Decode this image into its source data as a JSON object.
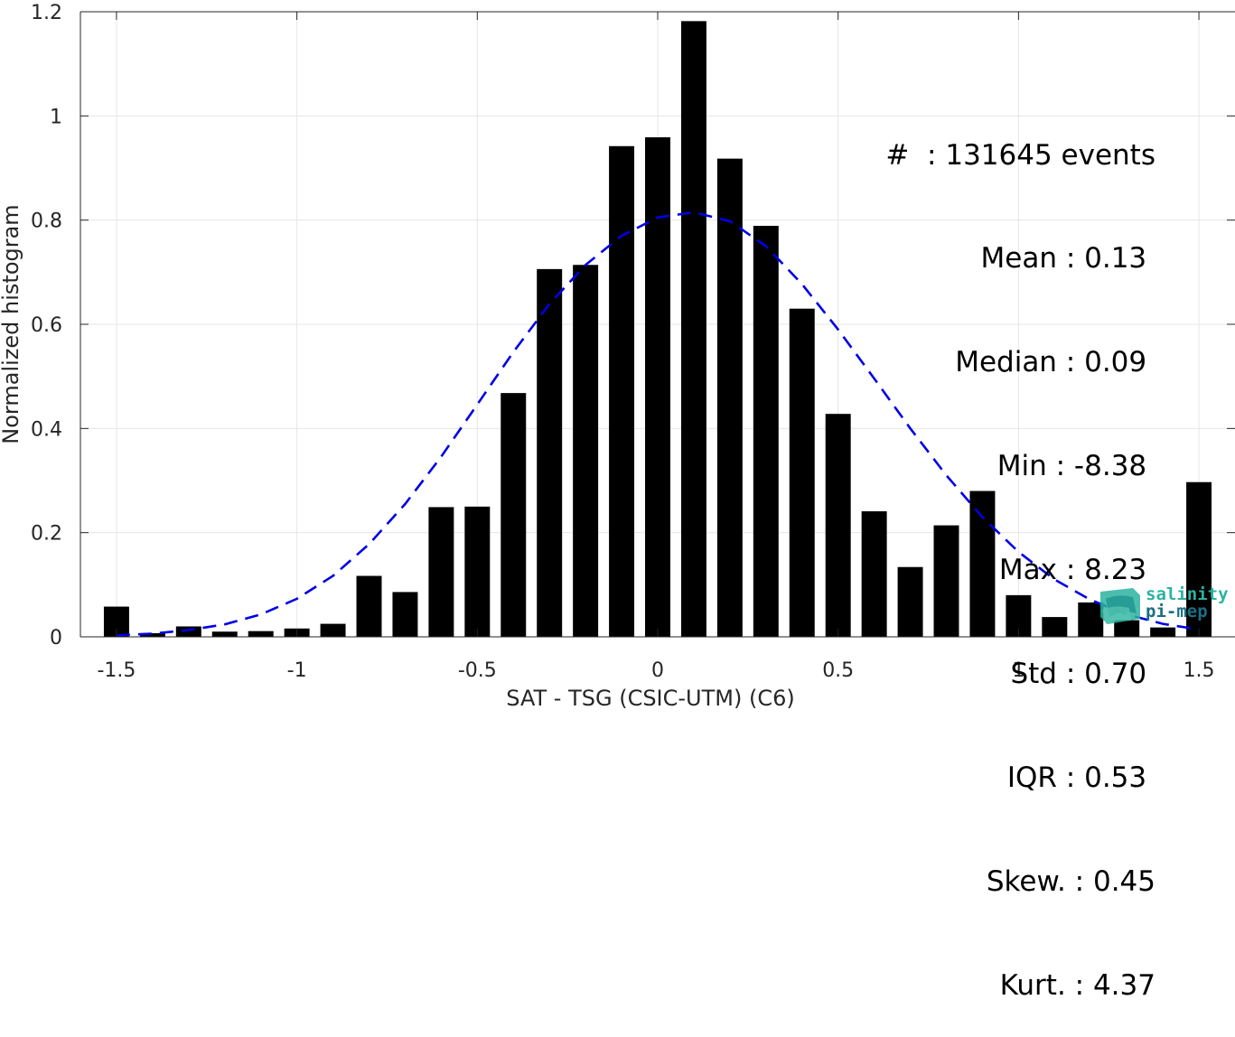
{
  "chart_data": {
    "type": "bar",
    "xlabel": "SAT - TSG (CSIC-UTM) (C6)",
    "ylabel": "Normalized histogram",
    "xlim": [
      -1.6,
      1.6
    ],
    "ylim": [
      0,
      1.2
    ],
    "xticks": [
      "-1.5",
      "-1",
      "-0.5",
      "0",
      "0.5",
      "1",
      "1.5"
    ],
    "xtick_values": [
      -1.5,
      -1,
      -0.5,
      0,
      0.5,
      1,
      1.5
    ],
    "yticks": [
      "0",
      "0.2",
      "0.4",
      "0.6",
      "0.8",
      "1",
      "1.2"
    ],
    "ytick_values": [
      0,
      0.2,
      0.4,
      0.6,
      0.8,
      1.0,
      1.2
    ],
    "grid": true,
    "bars": {
      "x": [
        -1.5,
        -1.4,
        -1.3,
        -1.2,
        -1.1,
        -1.0,
        -0.9,
        -0.8,
        -0.7,
        -0.6,
        -0.5,
        -0.4,
        -0.3,
        -0.2,
        -0.1,
        0.0,
        0.1,
        0.2,
        0.3,
        0.4,
        0.5,
        0.6,
        0.7,
        0.8,
        0.9,
        1.0,
        1.1,
        1.2,
        1.3,
        1.4,
        1.5
      ],
      "values": [
        0.058,
        0.007,
        0.02,
        0.01,
        0.011,
        0.016,
        0.025,
        0.117,
        0.086,
        0.249,
        0.25,
        0.468,
        0.706,
        0.714,
        0.942,
        0.959,
        1.182,
        0.918,
        0.789,
        0.63,
        0.428,
        0.241,
        0.134,
        0.214,
        0.28,
        0.08,
        0.038,
        0.066,
        0.032,
        0.018,
        0.297
      ],
      "color": "#000000"
    },
    "fit_curve": {
      "style": "dashed",
      "color": "#0000e6",
      "x": [
        -1.5,
        -1.4,
        -1.3,
        -1.2,
        -1.1,
        -1.0,
        -0.9,
        -0.8,
        -0.7,
        -0.6,
        -0.5,
        -0.4,
        -0.3,
        -0.2,
        -0.1,
        0.0,
        0.1,
        0.2,
        0.3,
        0.4,
        0.5,
        0.6,
        0.7,
        0.8,
        0.9,
        1.0,
        1.1,
        1.2,
        1.3,
        1.4,
        1.5
      ],
      "values": [
        0.003,
        0.006,
        0.013,
        0.024,
        0.043,
        0.073,
        0.117,
        0.178,
        0.255,
        0.346,
        0.446,
        0.547,
        0.639,
        0.714,
        0.77,
        0.805,
        0.815,
        0.798,
        0.75,
        0.677,
        0.59,
        0.496,
        0.4,
        0.31,
        0.23,
        0.163,
        0.11,
        0.071,
        0.043,
        0.025,
        0.014
      ]
    }
  },
  "stats": [
    "#  : 131645 events",
    "Mean : 0.13 ",
    "Median : 0.09 ",
    "Min : -8.38 ",
    "Max : 8.23 ",
    "Std : 0.70 ",
    "IQR : 0.53 ",
    "Skew. : 0.45",
    "Kurt. : 4.37"
  ],
  "logo": {
    "line1": "salinity",
    "line2": "pi-mep"
  }
}
